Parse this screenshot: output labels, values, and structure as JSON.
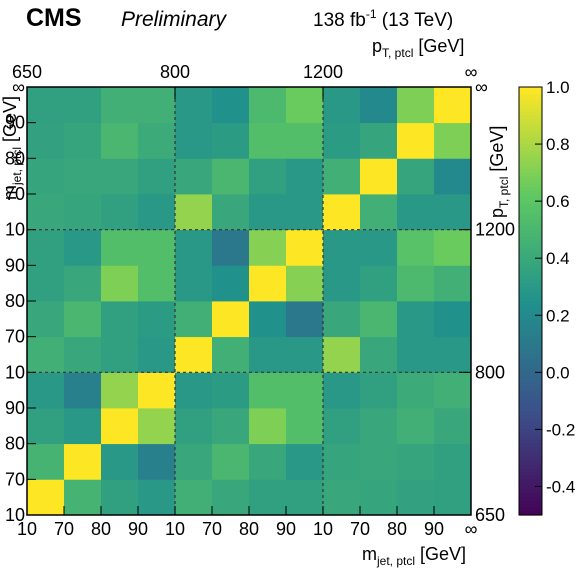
{
  "header": {
    "experiment": "CMS",
    "status": "Preliminary",
    "lumi_main": "138 fb",
    "lumi_exp": "-1",
    "energy": " (13 TeV)"
  },
  "chart_data": {
    "type": "heatmap",
    "title": "",
    "x_label": {
      "main": "m",
      "sub": "jet, ptcl",
      "unit": " [GeV]"
    },
    "y_label": {
      "main": "m",
      "sub": "jet, ptcl",
      "unit": " [GeV]"
    },
    "top_axis_label": {
      "main": "p",
      "sub": "T, ptcl",
      "unit": " [GeV]"
    },
    "right_axis_label": {
      "main": "p",
      "sub": "T, ptcl",
      "unit": " [GeV]"
    },
    "x_bin_edges": [
      "10",
      "70",
      "80",
      "90",
      "10",
      "70",
      "80",
      "90",
      "10",
      "70",
      "80",
      "90",
      "∞"
    ],
    "y_bin_edges": [
      "10",
      "70",
      "80",
      "90",
      "10",
      "70",
      "80",
      "90",
      "10",
      "70",
      "80",
      "90",
      "∞"
    ],
    "top_ticks": [
      "650",
      "800",
      "1200",
      "∞"
    ],
    "right_ticks": [
      "650",
      "800",
      "1200",
      "∞"
    ],
    "colorbar": {
      "min": -0.5,
      "max": 1.0,
      "ticks": [
        "1.0",
        "0.8",
        "0.6",
        "0.4",
        "0.2",
        "0.0",
        "-0.2",
        "-0.4"
      ],
      "tick_values": [
        1.0,
        0.8,
        0.6,
        0.4,
        0.2,
        0.0,
        -0.2,
        -0.4
      ]
    },
    "matrix_rows_bottom_to_top": [
      [
        1.0,
        0.48,
        0.35,
        0.3,
        0.45,
        0.4,
        0.35,
        0.35,
        0.4,
        0.38,
        0.36,
        0.35
      ],
      [
        0.48,
        1.0,
        0.3,
        0.15,
        0.4,
        0.5,
        0.4,
        0.3,
        0.38,
        0.4,
        0.38,
        0.35
      ],
      [
        0.35,
        0.3,
        1.0,
        0.75,
        0.35,
        0.4,
        0.7,
        0.55,
        0.35,
        0.4,
        0.45,
        0.4
      ],
      [
        0.3,
        0.15,
        0.75,
        1.0,
        0.3,
        0.32,
        0.55,
        0.55,
        0.3,
        0.35,
        0.42,
        0.45
      ],
      [
        0.45,
        0.4,
        0.35,
        0.3,
        1.0,
        0.45,
        0.3,
        0.3,
        0.75,
        0.4,
        0.3,
        0.3
      ],
      [
        0.4,
        0.5,
        0.35,
        0.32,
        0.45,
        1.0,
        0.25,
        0.1,
        0.4,
        0.5,
        0.3,
        0.25
      ],
      [
        0.35,
        0.4,
        0.7,
        0.55,
        0.3,
        0.25,
        1.0,
        0.72,
        0.3,
        0.35,
        0.52,
        0.45
      ],
      [
        0.35,
        0.3,
        0.55,
        0.55,
        0.3,
        0.1,
        0.72,
        1.0,
        0.3,
        0.3,
        0.58,
        0.65
      ],
      [
        0.4,
        0.38,
        0.35,
        0.3,
        0.75,
        0.4,
        0.3,
        0.3,
        1.0,
        0.45,
        0.3,
        0.3
      ],
      [
        0.38,
        0.4,
        0.4,
        0.35,
        0.4,
        0.5,
        0.35,
        0.3,
        0.45,
        1.0,
        0.38,
        0.2
      ],
      [
        0.36,
        0.38,
        0.5,
        0.42,
        0.3,
        0.32,
        0.55,
        0.55,
        0.32,
        0.38,
        1.0,
        0.7
      ],
      [
        0.35,
        0.35,
        0.45,
        0.45,
        0.3,
        0.25,
        0.52,
        0.65,
        0.3,
        0.2,
        0.7,
        1.0
      ]
    ]
  }
}
